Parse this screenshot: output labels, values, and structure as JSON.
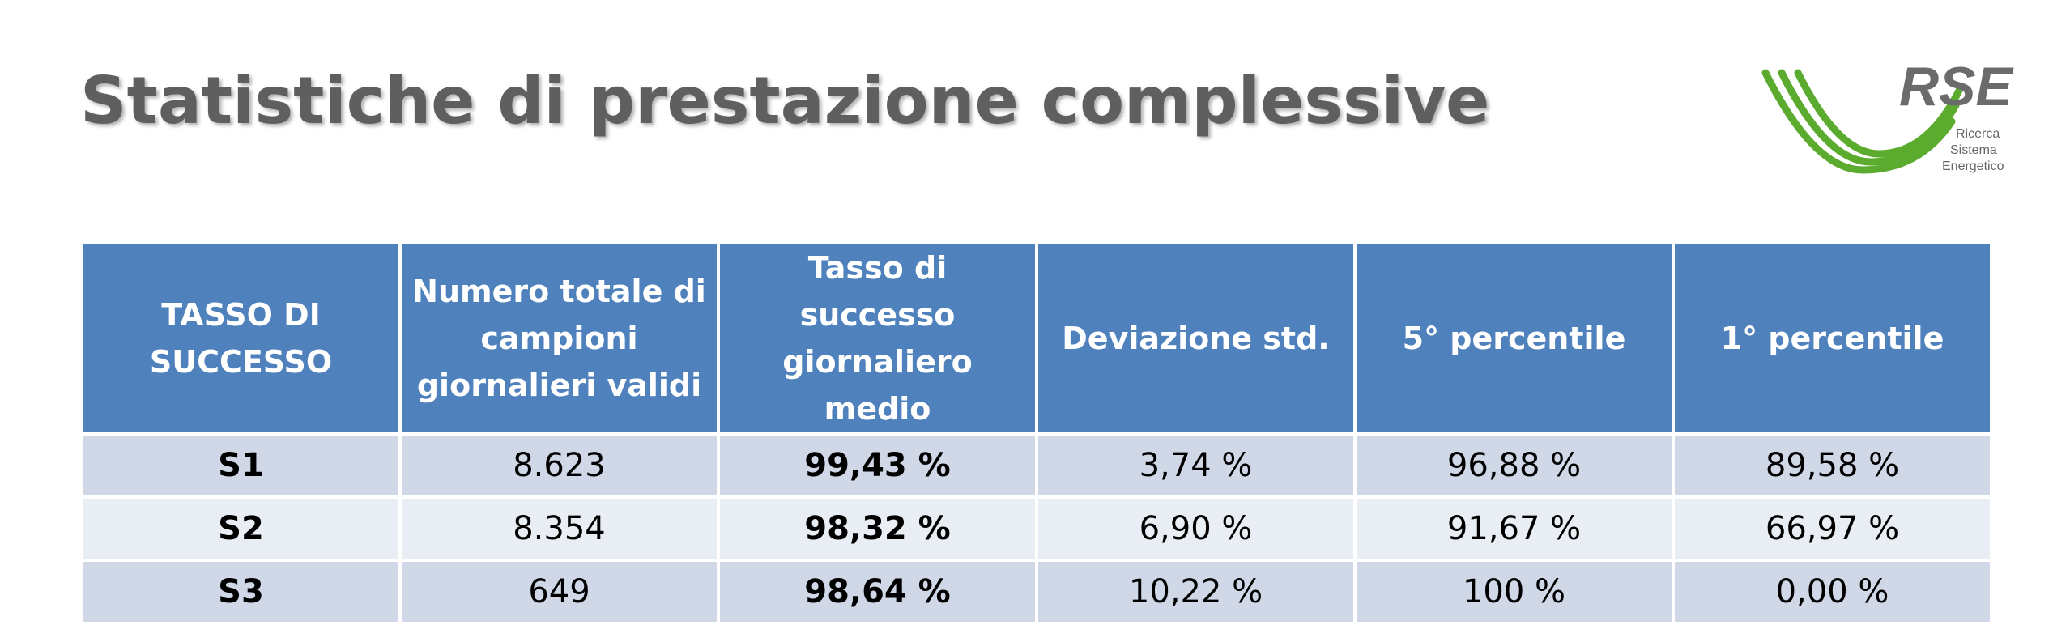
{
  "title": "Statistiche di prestazione complessive",
  "logo": {
    "name": "RSE",
    "lines": [
      "Ricerca",
      "Sistema",
      "Energetico"
    ]
  },
  "table": {
    "header": [
      "TASSO DI SUCCESSO",
      "Numero totale di campioni giornalieri validi",
      "Tasso di successo giornaliero medio",
      "Deviazione std.",
      "5° percentile",
      "1° percentile"
    ],
    "rows": [
      [
        "S1",
        "8.623",
        "99,43 %",
        "3,74 %",
        "96,88 %",
        "89,58 %"
      ],
      [
        "S2",
        "8.354",
        "98,32 %",
        "6,90 %",
        "91,67 %",
        "66,97 %"
      ],
      [
        "S3",
        "649",
        "98,64 %",
        "10,22 %",
        "100 %",
        "0,00 %"
      ]
    ]
  }
}
